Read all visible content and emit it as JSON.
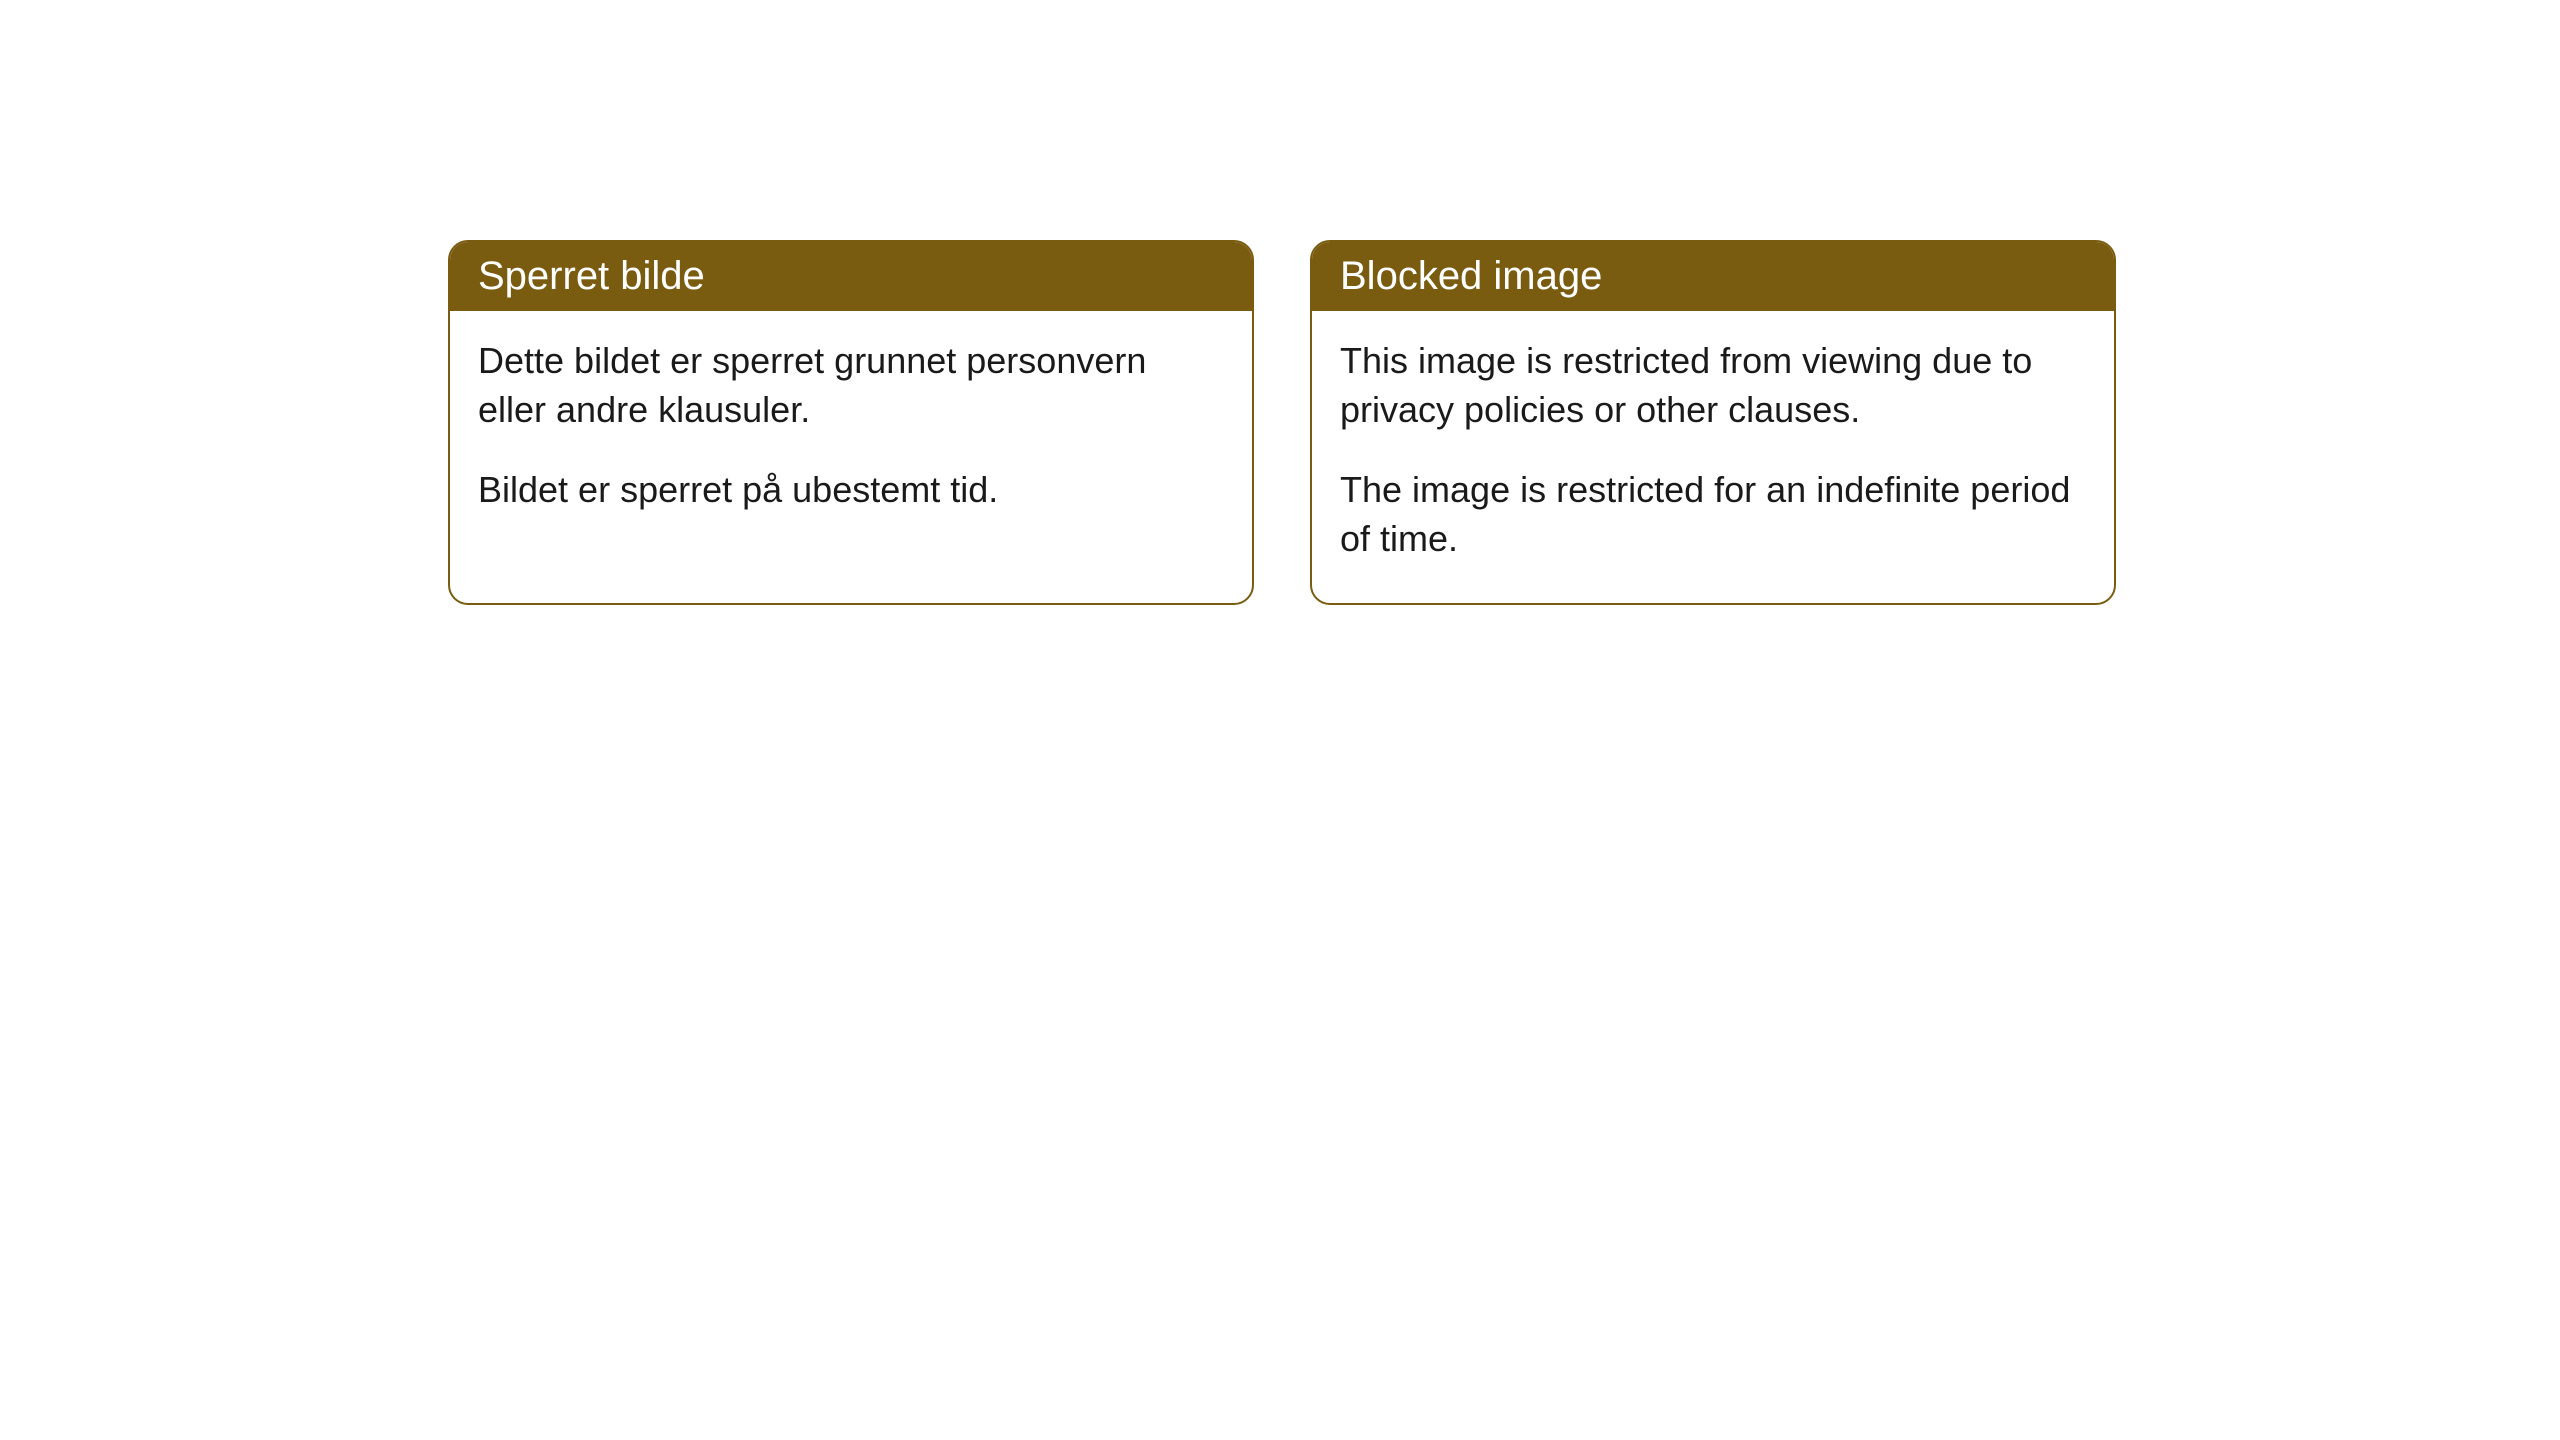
{
  "cards": [
    {
      "title": "Sperret bilde",
      "paragraph1": "Dette bildet er sperret grunnet personvern eller andre klausuler.",
      "paragraph2": "Bildet er sperret på ubestemt tid."
    },
    {
      "title": "Blocked image",
      "paragraph1": "This image is restricted from viewing due to privacy policies or other clauses.",
      "paragraph2": "The image is restricted for an indefinite period of time."
    }
  ],
  "styling": {
    "header_background": "#7a5c11",
    "header_text_color": "#ffffff",
    "card_border_color": "#7a5c11",
    "card_background": "#ffffff",
    "body_text_color": "#1a1a1a",
    "page_background": "#ffffff",
    "border_radius": 20,
    "title_fontsize": 40,
    "body_fontsize": 36
  }
}
